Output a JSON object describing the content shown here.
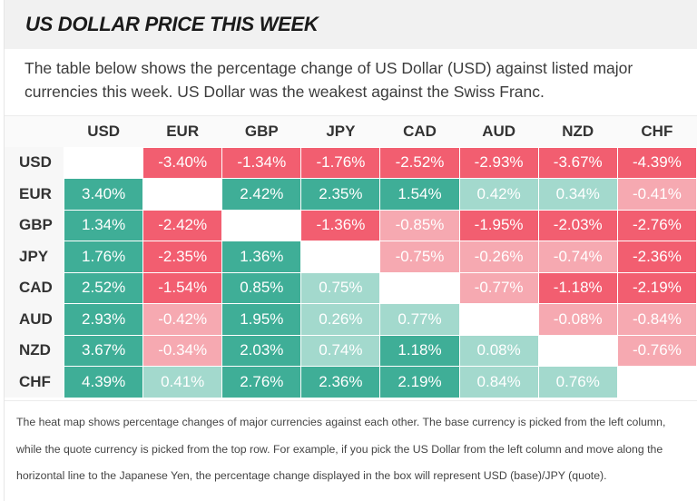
{
  "title": "US DOLLAR PRICE THIS WEEK",
  "intro": "The table below shows the percentage change of US Dollar (USD) against listed major currencies this week. US Dollar was the weakest against the Swiss Franc.",
  "currencies": [
    "USD",
    "EUR",
    "GBP",
    "JPY",
    "CAD",
    "AUD",
    "NZD",
    "CHF"
  ],
  "matrix": [
    [
      null,
      "-3.40%",
      "-1.34%",
      "-1.76%",
      "-2.52%",
      "-2.93%",
      "-3.67%",
      "-4.39%"
    ],
    [
      "3.40%",
      null,
      "2.42%",
      "2.35%",
      "1.54%",
      "0.42%",
      "0.34%",
      "-0.41%"
    ],
    [
      "1.34%",
      "-2.42%",
      null,
      "-1.36%",
      "-0.85%",
      "-1.95%",
      "-2.03%",
      "-2.76%"
    ],
    [
      "1.76%",
      "-2.35%",
      "1.36%",
      null,
      "-0.75%",
      "-0.26%",
      "-0.74%",
      "-2.36%"
    ],
    [
      "2.52%",
      "-1.54%",
      "0.85%",
      "0.75%",
      null,
      "-0.77%",
      "-1.18%",
      "-2.19%"
    ],
    [
      "2.93%",
      "-0.42%",
      "1.95%",
      "0.26%",
      "0.77%",
      null,
      "-0.08%",
      "-0.84%"
    ],
    [
      "3.67%",
      "-0.34%",
      "2.03%",
      "0.74%",
      "1.18%",
      "0.08%",
      null,
      "-0.76%"
    ],
    [
      "4.39%",
      "0.41%",
      "2.76%",
      "2.36%",
      "2.19%",
      "0.84%",
      "0.76%",
      null
    ]
  ],
  "colors": {
    "strong_positive": "#3fae97",
    "weak_positive": "#a3d9cd",
    "strong_negative": "#f25e70",
    "weak_negative": "#f6a9b1",
    "empty": "#ffffff"
  },
  "footnote": "The heat map shows percentage changes of major currencies against each other. The base currency is picked from the left column, while the quote currency is picked from the top row. For example, if you pick the US Dollar from the left column and move along the horizontal line to the Japanese Yen, the percentage change displayed in the box will represent USD (base)/JPY (quote)."
}
